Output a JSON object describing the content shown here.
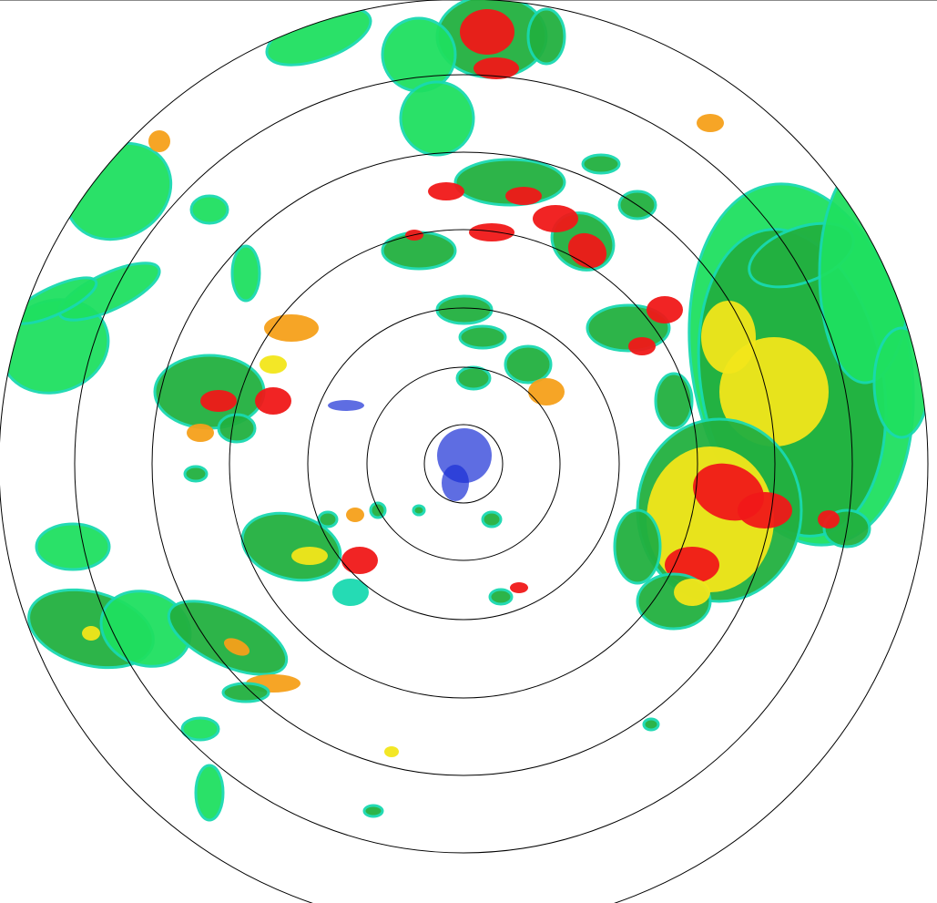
{
  "display": {
    "type": "radar-ppi-reflectivity",
    "range_ring_count": 7,
    "ring_color": "#000000",
    "background": "#ffffff"
  },
  "palette": {
    "weak_blue": "#1a2fd6",
    "light_cyan": "#19d9b0",
    "light_green": "#1fe060",
    "green": "#22b040",
    "yellow": "#f2e61a",
    "orange": "#f5a01a",
    "red": "#f01818"
  }
}
